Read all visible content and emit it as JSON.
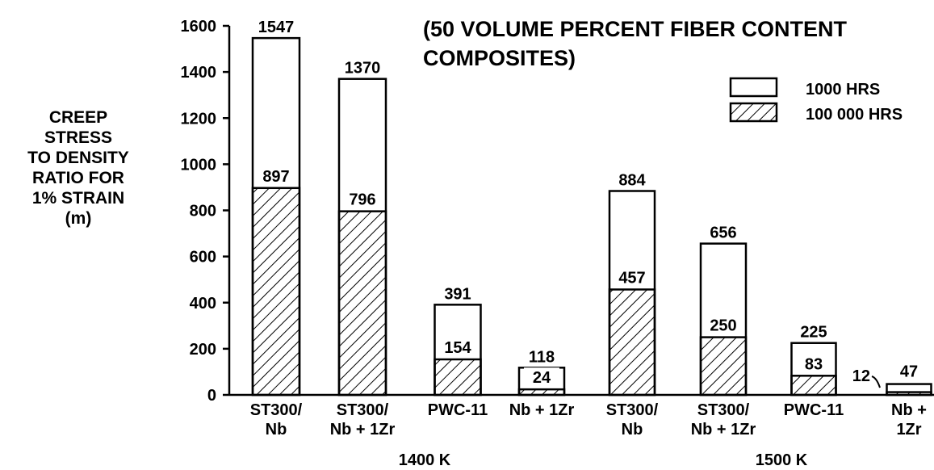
{
  "chart_data": {
    "type": "bar",
    "stacking": "overlay",
    "title": "(50 VOLUME PERCENT FIBER CONTENT COMPOSITES)",
    "title_lines": [
      "(50 VOLUME PERCENT FIBER CONTENT",
      "COMPOSITES)"
    ],
    "ylabel_lines": [
      "CREEP",
      "STRESS",
      "TO DENSITY",
      "RATIO FOR",
      "1% STRAIN",
      "(m)"
    ],
    "ylim": [
      0,
      1600
    ],
    "yticks": [
      0,
      200,
      400,
      600,
      800,
      1000,
      1200,
      1400,
      1600
    ],
    "grid": false,
    "legend_position": "top-right",
    "groups": [
      {
        "label": "1400 K",
        "start": 0,
        "end": 3
      },
      {
        "label": "1500 K",
        "start": 4,
        "end": 7
      }
    ],
    "categories": [
      [
        "ST300/",
        "Nb"
      ],
      [
        "ST300/",
        "Nb + 1Zr"
      ],
      [
        "PWC-11"
      ],
      [
        "Nb + 1Zr"
      ],
      [
        "ST300/",
        "Nb"
      ],
      [
        "ST300/",
        "Nb + 1Zr"
      ],
      [
        "PWC-11"
      ],
      [
        "Nb +",
        "1Zr"
      ]
    ],
    "series": [
      {
        "name": "1000 HRS",
        "pattern": "open",
        "values": [
          1547,
          1370,
          391,
          118,
          884,
          656,
          225,
          47
        ]
      },
      {
        "name": "100 000 HRS",
        "pattern": "hatched",
        "values": [
          897,
          796,
          154,
          24,
          457,
          250,
          83,
          12
        ]
      }
    ]
  }
}
